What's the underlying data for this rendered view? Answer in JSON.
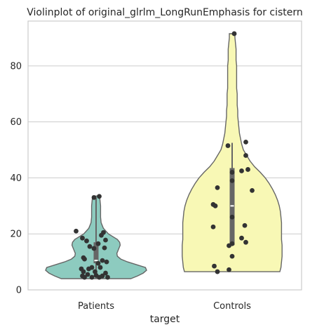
{
  "chart_data": {
    "type": "violin",
    "title": "Violinplot of original_glrlm_LongRunEmphasis for cistern",
    "xlabel": "target",
    "ylabel": "",
    "ylim": [
      0,
      96
    ],
    "yticks": [
      0,
      20,
      40,
      60,
      80
    ],
    "categories": [
      "Patients",
      "Controls"
    ],
    "grid": "y",
    "colors": [
      "#8dcbbf",
      "#f8f8b5"
    ],
    "series": [
      {
        "category": "Patients",
        "min": 4,
        "max": 33.5,
        "q1": 9.5,
        "median": 10.5,
        "q3": 17,
        "whisker_low": 4,
        "whisker_high": 33,
        "density": [
          [
            4,
            0.62
          ],
          [
            5,
            0.74
          ],
          [
            6,
            0.84
          ],
          [
            7,
            0.9
          ],
          [
            8,
            0.88
          ],
          [
            9,
            0.72
          ],
          [
            10,
            0.56
          ],
          [
            11,
            0.44
          ],
          [
            12,
            0.38
          ],
          [
            13,
            0.37
          ],
          [
            14,
            0.39
          ],
          [
            15,
            0.41
          ],
          [
            16,
            0.43
          ],
          [
            17,
            0.42
          ],
          [
            18,
            0.38
          ],
          [
            19,
            0.3
          ],
          [
            20,
            0.22
          ],
          [
            22,
            0.13
          ],
          [
            24,
            0.09
          ],
          [
            26,
            0.08
          ],
          [
            28,
            0.08
          ],
          [
            30,
            0.08
          ],
          [
            32,
            0.07
          ],
          [
            33.5,
            0.06
          ]
        ],
        "points": [
          {
            "jitter": -0.02,
            "value": 33.0
          },
          {
            "jitter": 0.03,
            "value": 33.4
          },
          {
            "jitter": -0.19,
            "value": 21.0
          },
          {
            "jitter": 0.07,
            "value": 20.5
          },
          {
            "jitter": 0.05,
            "value": 19.5
          },
          {
            "jitter": -0.13,
            "value": 18.5
          },
          {
            "jitter": 0.09,
            "value": 17.8
          },
          {
            "jitter": -0.09,
            "value": 17.5
          },
          {
            "jitter": 0.02,
            "value": 16.5
          },
          {
            "jitter": -0.06,
            "value": 15.5
          },
          {
            "jitter": 0.08,
            "value": 15.0
          },
          {
            "jitter": -0.02,
            "value": 14.8
          },
          {
            "jitter": -0.12,
            "value": 11.5
          },
          {
            "jitter": -0.11,
            "value": 11.0
          },
          {
            "jitter": 0.06,
            "value": 10.5
          },
          {
            "jitter": 0.1,
            "value": 10.0
          },
          {
            "jitter": 0.02,
            "value": 9.5
          },
          {
            "jitter": -0.04,
            "value": 8.0
          },
          {
            "jitter": 0.04,
            "value": 8.0
          },
          {
            "jitter": -0.07,
            "value": 7.5
          },
          {
            "jitter": -0.14,
            "value": 7.5
          },
          {
            "jitter": -0.12,
            "value": 6.5
          },
          {
            "jitter": 0.09,
            "value": 6.0
          },
          {
            "jitter": -0.08,
            "value": 5.5
          },
          {
            "jitter": 0.0,
            "value": 5.2
          },
          {
            "jitter": 0.06,
            "value": 5.0
          },
          {
            "jitter": -0.13,
            "value": 5.0
          },
          {
            "jitter": -0.11,
            "value": 4.5
          },
          {
            "jitter": -0.04,
            "value": 4.5
          },
          {
            "jitter": 0.03,
            "value": 4.5
          },
          {
            "jitter": 0.11,
            "value": 4.5
          },
          {
            "jitter": -0.01,
            "value": 6.5
          }
        ]
      },
      {
        "category": "Controls",
        "min": 6.5,
        "max": 91.5,
        "q1": 16,
        "median": 30,
        "q3": 43.5,
        "whisker_low": 16,
        "whisker_high": 52.5,
        "density": [
          [
            6.5,
            0.85
          ],
          [
            8,
            0.87
          ],
          [
            10,
            0.88
          ],
          [
            12,
            0.89
          ],
          [
            14,
            0.89
          ],
          [
            16,
            0.89
          ],
          [
            18,
            0.88
          ],
          [
            20,
            0.88
          ],
          [
            22,
            0.88
          ],
          [
            24,
            0.88
          ],
          [
            26,
            0.87
          ],
          [
            28,
            0.86
          ],
          [
            30,
            0.84
          ],
          [
            32,
            0.81
          ],
          [
            34,
            0.77
          ],
          [
            36,
            0.72
          ],
          [
            38,
            0.66
          ],
          [
            40,
            0.59
          ],
          [
            42,
            0.5
          ],
          [
            44,
            0.4
          ],
          [
            46,
            0.32
          ],
          [
            48,
            0.26
          ],
          [
            50,
            0.2
          ],
          [
            52,
            0.17
          ],
          [
            54,
            0.15
          ],
          [
            56,
            0.13
          ],
          [
            58,
            0.12
          ],
          [
            60,
            0.11
          ],
          [
            62,
            0.1
          ],
          [
            64,
            0.1
          ],
          [
            66,
            0.09
          ],
          [
            68,
            0.09
          ],
          [
            70,
            0.09
          ],
          [
            72,
            0.08
          ],
          [
            74,
            0.08
          ],
          [
            76,
            0.08
          ],
          [
            78,
            0.08
          ],
          [
            80,
            0.08
          ],
          [
            82,
            0.07
          ],
          [
            84,
            0.07
          ],
          [
            86,
            0.07
          ],
          [
            88,
            0.06
          ],
          [
            90,
            0.05
          ],
          [
            91.5,
            0.05
          ]
        ],
        "points": [
          {
            "jitter": 0.02,
            "value": 91.5
          },
          {
            "jitter": 0.13,
            "value": 52.8
          },
          {
            "jitter": -0.04,
            "value": 51.5
          },
          {
            "jitter": 0.13,
            "value": 48.0
          },
          {
            "jitter": 0.15,
            "value": 43.0
          },
          {
            "jitter": 0.09,
            "value": 42.5
          },
          {
            "jitter": 0.0,
            "value": 42.0
          },
          {
            "jitter": 0.0,
            "value": 39.0
          },
          {
            "jitter": -0.14,
            "value": 36.5
          },
          {
            "jitter": 0.19,
            "value": 35.5
          },
          {
            "jitter": -0.18,
            "value": 30.5
          },
          {
            "jitter": -0.16,
            "value": 30.0
          },
          {
            "jitter": 0.0,
            "value": 26.0
          },
          {
            "jitter": 0.12,
            "value": 23.0
          },
          {
            "jitter": -0.18,
            "value": 22.5
          },
          {
            "jitter": 0.09,
            "value": 18.5
          },
          {
            "jitter": 0.13,
            "value": 17.0
          },
          {
            "jitter": 0.0,
            "value": 16.5
          },
          {
            "jitter": -0.03,
            "value": 15.8
          },
          {
            "jitter": 0.0,
            "value": 12.0
          },
          {
            "jitter": -0.17,
            "value": 8.5
          },
          {
            "jitter": -0.03,
            "value": 7.2
          },
          {
            "jitter": -0.14,
            "value": 6.5
          }
        ]
      }
    ]
  }
}
